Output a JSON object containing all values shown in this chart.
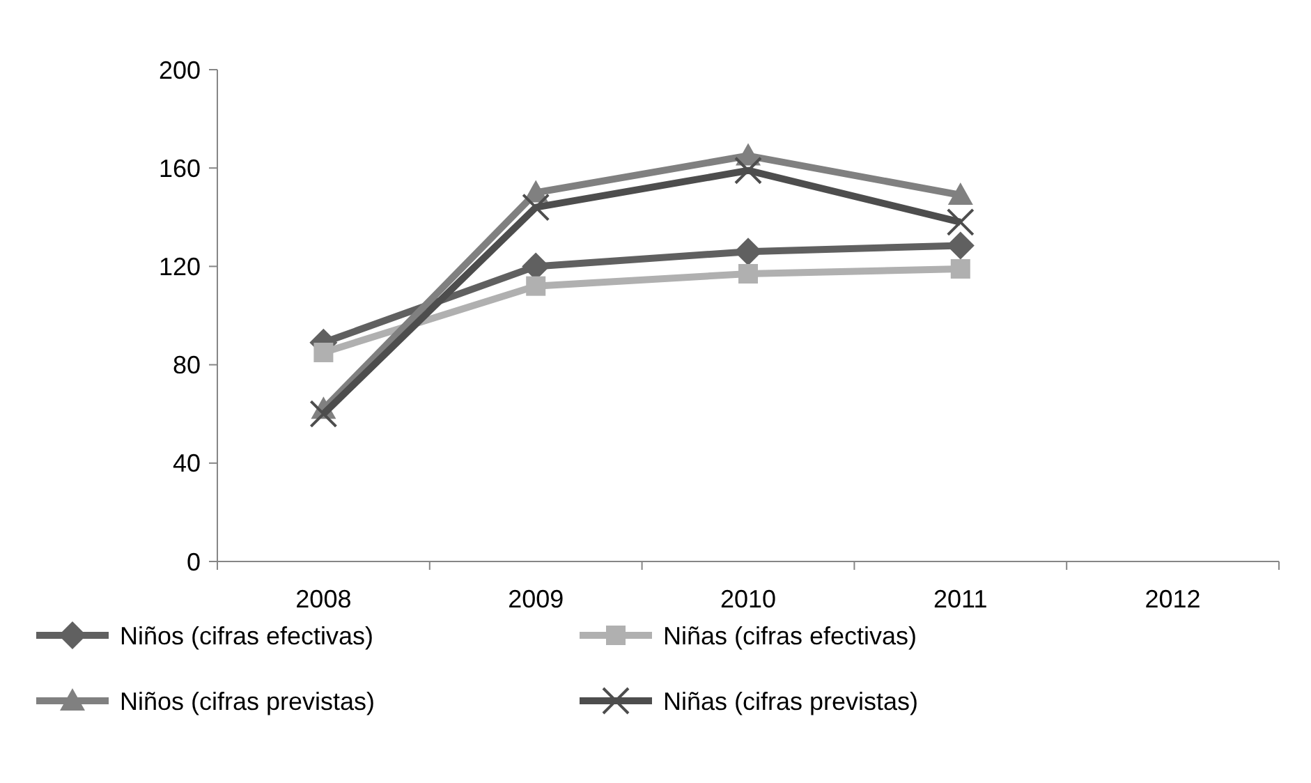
{
  "chart_data": {
    "type": "line",
    "categories": [
      "2008",
      "2009",
      "2010",
      "2011",
      "2012"
    ],
    "ylim": [
      0,
      200
    ],
    "yticks": [
      0,
      40,
      80,
      120,
      160,
      200
    ],
    "grid": false,
    "legend": "bottom",
    "series": [
      {
        "name": "Niños (cifras efectivas)",
        "color": "#606060",
        "marker": "diamond",
        "values": [
          89,
          120,
          126,
          128.5,
          null
        ]
      },
      {
        "name": "Niñas (cifras efectivas)",
        "color": "#b0b0b0",
        "marker": "square",
        "values": [
          85,
          112,
          117,
          119,
          null
        ]
      },
      {
        "name": "Niños (cifras previstas)",
        "color": "#808080",
        "marker": "triangle",
        "values": [
          62,
          150,
          165,
          149,
          null
        ]
      },
      {
        "name": "Niñas (cifras previstas)",
        "color": "#4d4d4d",
        "marker": "cross",
        "values": [
          60,
          144,
          159,
          138,
          null
        ]
      }
    ]
  }
}
